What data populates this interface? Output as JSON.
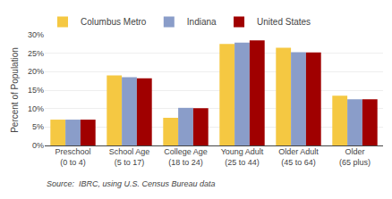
{
  "chart_data": {
    "type": "bar",
    "ylabel": "Percent of Population",
    "categories": [
      "Preschool\n(0 to 4)",
      "School Age\n(5 to 17)",
      "College Age\n(18 to 24)",
      "Young Adult\n(25 to 44)",
      "Older Adult\n(45 to 64)",
      "Older\n(65 plus)"
    ],
    "series": [
      {
        "name": "Columbus Metro",
        "color": "#F5C842",
        "values": [
          7.0,
          19.0,
          7.5,
          27.5,
          26.5,
          13.5
        ]
      },
      {
        "name": "Indiana",
        "color": "#8A9DC9",
        "values": [
          7.0,
          18.5,
          10.2,
          27.9,
          25.3,
          12.5
        ]
      },
      {
        "name": "United States",
        "color": "#A00000",
        "values": [
          7.0,
          18.2,
          10.1,
          28.5,
          25.2,
          12.5
        ]
      }
    ],
    "ylim": [
      0,
      30
    ],
    "yticks": [
      {
        "value": 0,
        "label": "0%"
      },
      {
        "value": 5,
        "label": "5%"
      },
      {
        "value": 10,
        "label": "10%"
      },
      {
        "value": 15,
        "label": "15%"
      },
      {
        "value": 20,
        "label": "20%"
      },
      {
        "value": 25,
        "label": "25%"
      },
      {
        "value": 30,
        "label": "30%"
      }
    ],
    "grid": true,
    "legend": "upper left",
    "annotations": [
      "Source:  IBRC, using U.S. Census Bureau data"
    ]
  }
}
